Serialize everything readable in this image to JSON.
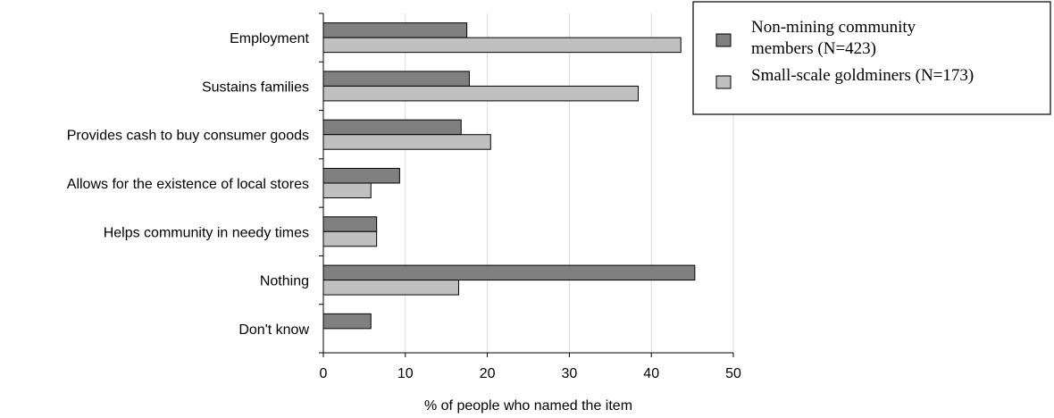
{
  "chart_data": {
    "type": "bar",
    "orientation": "horizontal",
    "categories": [
      "Employment",
      "Sustains families",
      "Provides cash to buy consumer goods",
      "Allows for the existence of local stores",
      "Helps community in needy times",
      "Nothing",
      "Don't know"
    ],
    "series": [
      {
        "name": "Non-mining community members (N=423)",
        "legend_lines": [
          "Non-mining community",
          "members (N=423)"
        ],
        "color": "#808080",
        "values": [
          17.5,
          17.8,
          16.8,
          9.3,
          6.5,
          45.3,
          5.8
        ]
      },
      {
        "name": "Small-scale goldminers (N=173)",
        "legend_lines": [
          "Small-scale goldminers (N=173)"
        ],
        "color": "#c0c0c0",
        "values": [
          43.6,
          38.4,
          20.4,
          5.8,
          6.5,
          16.5,
          0
        ]
      }
    ],
    "xlabel": "% of people who named the item",
    "xlim": [
      0,
      50
    ],
    "xticks": [
      "0",
      "10",
      "20",
      "30",
      "40",
      "50"
    ],
    "grid": "vertical",
    "grid_color": "#d8d8f0",
    "legend_position": "top-right"
  }
}
